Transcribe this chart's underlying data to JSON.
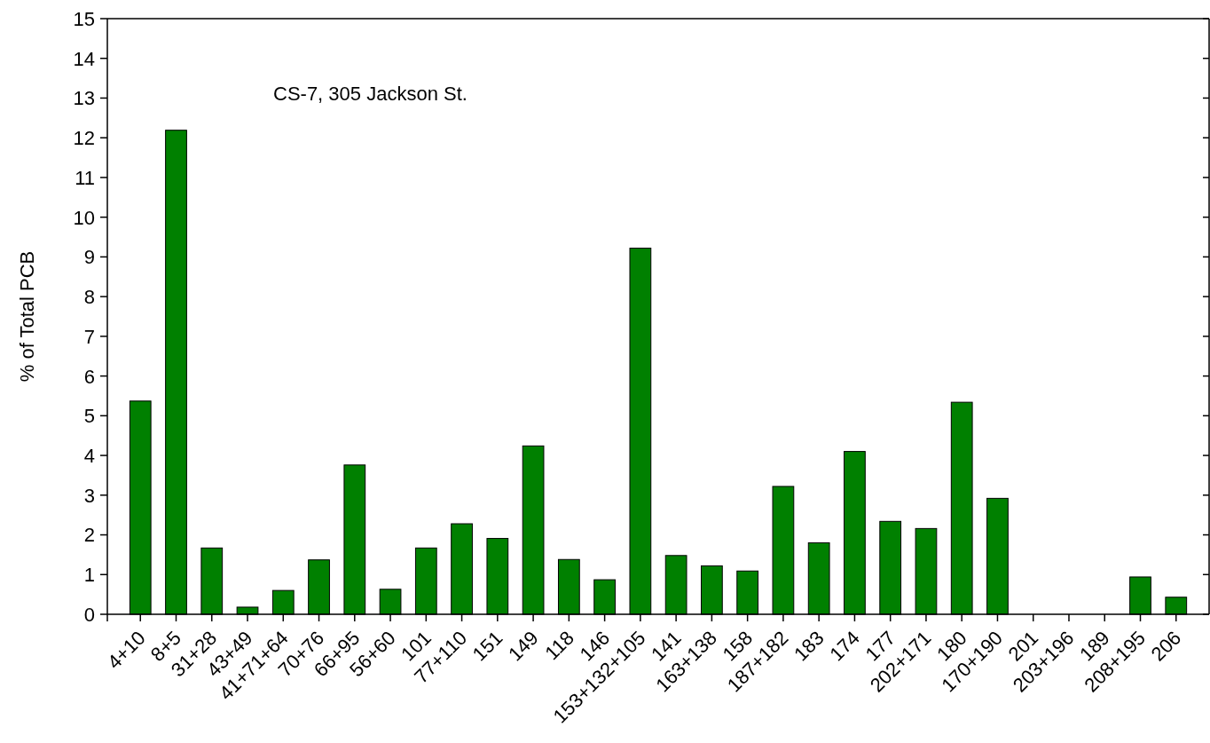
{
  "chart_data": {
    "type": "bar",
    "categories": [
      "4+10",
      "8+5",
      "31+28",
      "43+49",
      "41+71+64",
      "70+76",
      "66+95",
      "56+60",
      "101",
      "77+110",
      "151",
      "149",
      "118",
      "146",
      "153+132+105",
      "141",
      "163+138",
      "158",
      "187+182",
      "183",
      "174",
      "177",
      "202+171",
      "180",
      "170+190",
      "201",
      "203+196",
      "189",
      "208+195",
      "206"
    ],
    "values": [
      5.37,
      12.19,
      1.67,
      0.18,
      0.6,
      1.37,
      3.76,
      0.63,
      1.67,
      2.28,
      1.91,
      4.24,
      1.38,
      0.87,
      9.22,
      1.48,
      1.22,
      1.09,
      3.22,
      1.8,
      4.1,
      2.34,
      2.16,
      5.34,
      2.92,
      0,
      0,
      0,
      0.94,
      0.43
    ],
    "color": "#008000",
    "ylabel": "% of Total PCB",
    "ylim": [
      0,
      15
    ],
    "yticks": [
      0,
      1,
      2,
      3,
      4,
      5,
      6,
      7,
      8,
      9,
      10,
      11,
      12,
      13,
      14,
      15
    ],
    "annotations": [
      "CS-7, 305 Jackson St."
    ]
  }
}
